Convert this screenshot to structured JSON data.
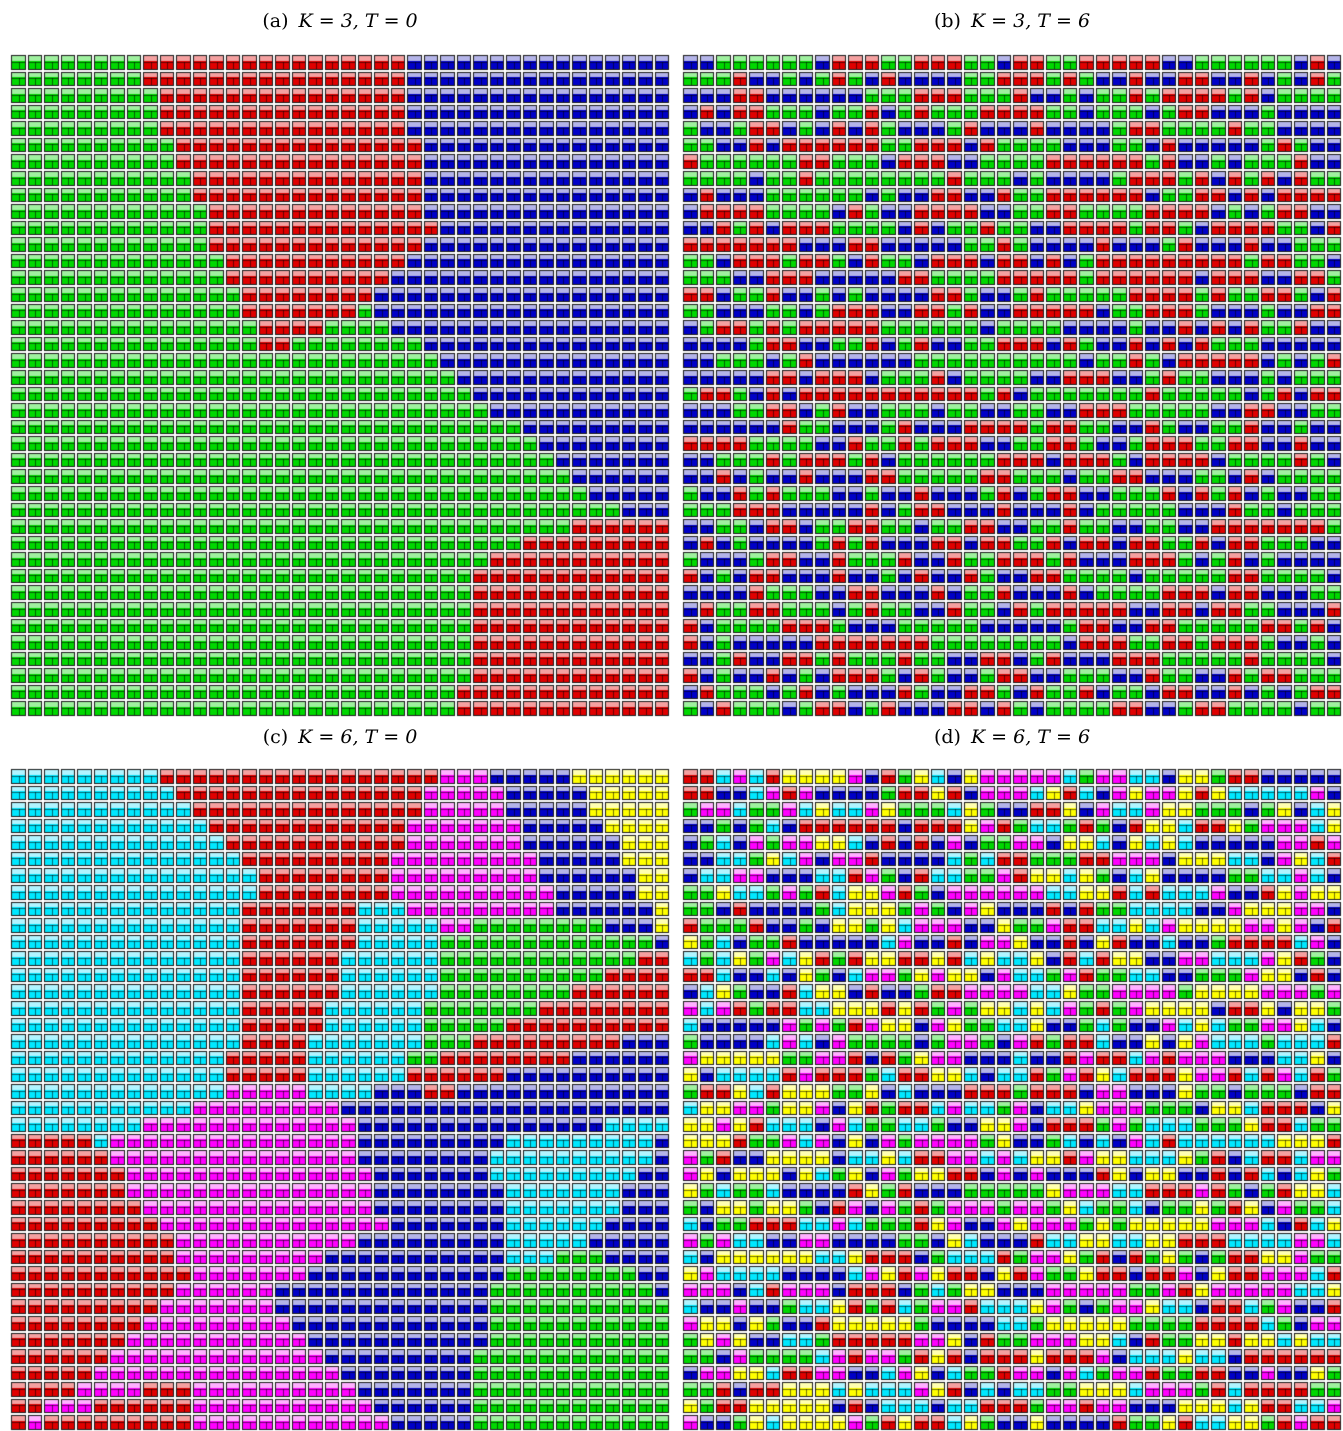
{
  "panels": [
    {
      "tag": "(a)",
      "math": "K = 3, T = 0",
      "K": 3,
      "T": 0,
      "palette": [
        "green",
        "blue",
        "red"
      ]
    },
    {
      "tag": "(b)",
      "math": "K = 3, T = 6",
      "K": 3,
      "T": 6,
      "palette": [
        "green",
        "blue",
        "red"
      ]
    },
    {
      "tag": "(c)",
      "math": "K = 6, T = 0",
      "K": 6,
      "T": 0,
      "palette": [
        "yellow",
        "green",
        "magenta",
        "cyan",
        "red",
        "blue"
      ]
    },
    {
      "tag": "(d)",
      "math": "K = 6, T = 6",
      "K": 6,
      "T": 6,
      "palette": [
        "yellow",
        "green",
        "magenta",
        "cyan",
        "red",
        "blue"
      ]
    }
  ],
  "grid": {
    "rows": 40,
    "cols": 40
  },
  "colors": {
    "green": {
      "base": "#00d800",
      "light": "#9ff09f"
    },
    "blue": {
      "base": "#0000c8",
      "light": "#b4b4e8"
    },
    "red": {
      "base": "#e00000",
      "light": "#f4a0a0"
    },
    "yellow": {
      "base": "#ffff00",
      "light": "#ffffb0"
    },
    "magenta": {
      "base": "#ff00ff",
      "light": "#ffb0ff"
    },
    "cyan": {
      "base": "#00e8ff",
      "light": "#b0f4ff"
    }
  }
}
